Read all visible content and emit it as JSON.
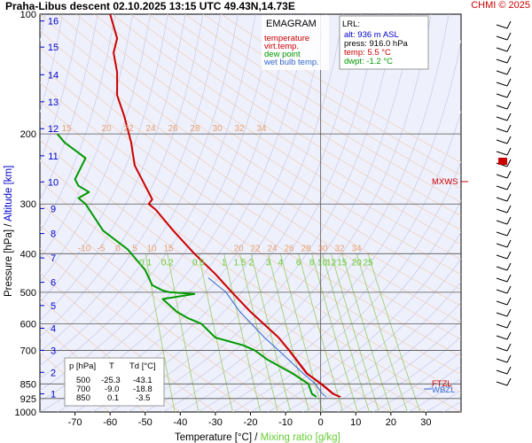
{
  "header": {
    "title": "Praha-Libus   descent   02.10.2025 13:15 UTC  49.43N,14.73E",
    "copyright": "CHMI © 2025"
  },
  "legend": {
    "heading": "EMAGRAM",
    "items": [
      {
        "label": "temperature",
        "color": "#cc0000"
      },
      {
        "label": "virt.temp.",
        "color": "#cc0000"
      },
      {
        "label": "dew point",
        "color": "#009900"
      },
      {
        "label": "wet bulb temp.",
        "color": "#3366cc"
      }
    ]
  },
  "lrl": {
    "heading": "LRL:",
    "lines": [
      {
        "text": "alt: 936 m ASL",
        "color": "#0000cc"
      },
      {
        "text": "press: 916.0 hPa",
        "color": "#000000"
      },
      {
        "text": "temp: 5.5 °C",
        "color": "#cc0000"
      },
      {
        "text": "dwpt: -1.2 °C",
        "color": "#009900"
      }
    ]
  },
  "axes": {
    "ylabel_pressure": "Pressure [hPa]",
    "ylabel_sep": " / ",
    "ylabel_altitude": "Altitude [km]",
    "xlabel_temp": "Temperature [°C]",
    "xlabel_sep": " / ",
    "xlabel_mixing": "Mixing ratio [g/kg]"
  },
  "markers": {
    "mxws": "MXWS",
    "wbzl": "WBZL",
    "ftzl": "FTZL"
  },
  "table": {
    "headers": [
      "p [hPa]",
      "T",
      "Td [°C]"
    ],
    "rows": [
      [
        "500",
        "-25.3",
        "-43.1"
      ],
      [
        "700",
        "-9.0",
        "-18.8"
      ],
      [
        "850",
        "0.1",
        "-3.5"
      ]
    ]
  },
  "chart_data": {
    "type": "line",
    "xlim": [
      -80,
      40
    ],
    "ylim_hPa": [
      1000,
      100
    ],
    "x_ticks": [
      -70,
      -60,
      -50,
      -40,
      -30,
      -20,
      -10,
      0,
      10,
      20,
      30
    ],
    "pressure_ticks": [
      100,
      200,
      300,
      400,
      500,
      600,
      700,
      850,
      925,
      1000
    ],
    "altitude_ticks_km": [
      1,
      2,
      3,
      4,
      5,
      6,
      7,
      8,
      9,
      10,
      11,
      12,
      13,
      14,
      15,
      16
    ],
    "altitude_tick_pressures": [
      900,
      795,
      700,
      616,
      540,
      472,
      410,
      356,
      308,
      264,
      227,
      194,
      166,
      142,
      121,
      104
    ],
    "mixing_ratio_labels": [
      "0.1",
      "0.2",
      "0.5",
      "1",
      "1.5",
      "2",
      "3",
      "4",
      "6",
      "8",
      "10",
      "12",
      "15",
      "20",
      "25"
    ],
    "mixing_ratio_values": [
      0.1,
      0.2,
      0.5,
      1,
      1.5,
      2,
      3,
      4,
      6,
      8,
      10,
      12,
      15,
      20,
      25
    ],
    "isotherm_labels_400": [
      "-10",
      "-5",
      "0",
      "5",
      "10",
      "15",
      "20",
      "22",
      "24",
      "26",
      "28",
      "30",
      "32",
      "34"
    ],
    "isotherm_labels_200": [
      "15",
      "20",
      "22",
      "24",
      "26",
      "28",
      "30",
      "32",
      "34"
    ],
    "series": [
      {
        "name": "temperature",
        "color": "#cc0000",
        "points": [
          [
            5.5,
            916
          ],
          [
            3.5,
            900
          ],
          [
            0.1,
            850
          ],
          [
            -4,
            800
          ],
          [
            -9,
            700
          ],
          [
            -12,
            650
          ],
          [
            -20,
            560
          ],
          [
            -25.3,
            500
          ],
          [
            -30,
            450
          ],
          [
            -36,
            400
          ],
          [
            -42,
            350
          ],
          [
            -47,
            310
          ],
          [
            -49,
            300
          ],
          [
            -48,
            292
          ],
          [
            -50,
            270
          ],
          [
            -53,
            240
          ],
          [
            -54,
            210
          ],
          [
            -56,
            180
          ],
          [
            -58,
            160
          ],
          [
            -58,
            140
          ],
          [
            -59,
            125
          ],
          [
            -58,
            115
          ],
          [
            -60,
            100
          ]
        ]
      },
      {
        "name": "virt.temp.",
        "color": "#cc0000",
        "points": [
          [
            5.8,
            916
          ],
          [
            3.8,
            900
          ],
          [
            0.4,
            850
          ],
          [
            -3.7,
            800
          ],
          [
            -8.8,
            700
          ],
          [
            -11.9,
            650
          ],
          [
            -19.9,
            560
          ],
          [
            -25.2,
            500
          ],
          [
            -29.9,
            450
          ],
          [
            -36,
            400
          ],
          [
            -42,
            350
          ],
          [
            -47,
            310
          ],
          [
            -49,
            300
          ],
          [
            -48,
            292
          ],
          [
            -50,
            270
          ],
          [
            -53,
            240
          ],
          [
            -54,
            210
          ],
          [
            -56,
            180
          ],
          [
            -58,
            160
          ],
          [
            -58,
            140
          ],
          [
            -59,
            125
          ],
          [
            -58,
            115
          ],
          [
            -60,
            100
          ]
        ]
      },
      {
        "name": "dew point",
        "color": "#009900",
        "points": [
          [
            -1.2,
            916
          ],
          [
            -2.5,
            900
          ],
          [
            -3.5,
            850
          ],
          [
            -8,
            800
          ],
          [
            -15,
            740
          ],
          [
            -18.8,
            700
          ],
          [
            -22,
            680
          ],
          [
            -30,
            650
          ],
          [
            -34,
            600
          ],
          [
            -38,
            580
          ],
          [
            -41,
            560
          ],
          [
            -43,
            540
          ],
          [
            -45,
            520
          ],
          [
            -36,
            505
          ],
          [
            -43.1,
            500
          ],
          [
            -45,
            495
          ],
          [
            -48,
            480
          ],
          [
            -50,
            440
          ],
          [
            -55,
            390
          ],
          [
            -62,
            350
          ],
          [
            -67,
            300
          ],
          [
            -69,
            290
          ],
          [
            -66,
            280
          ],
          [
            -69,
            270
          ],
          [
            -70,
            260
          ],
          [
            -67,
            230
          ],
          [
            -73,
            210
          ],
          [
            -75,
            200
          ]
        ]
      },
      {
        "name": "wet bulb temp.",
        "color": "#3366cc",
        "points": [
          [
            1.6,
            916
          ],
          [
            0.5,
            900
          ],
          [
            -1.5,
            850
          ],
          [
            -5,
            800
          ],
          [
            -12,
            700
          ],
          [
            -16,
            650
          ],
          [
            -23,
            560
          ],
          [
            -27,
            500
          ],
          [
            -32,
            460
          ]
        ]
      }
    ]
  }
}
